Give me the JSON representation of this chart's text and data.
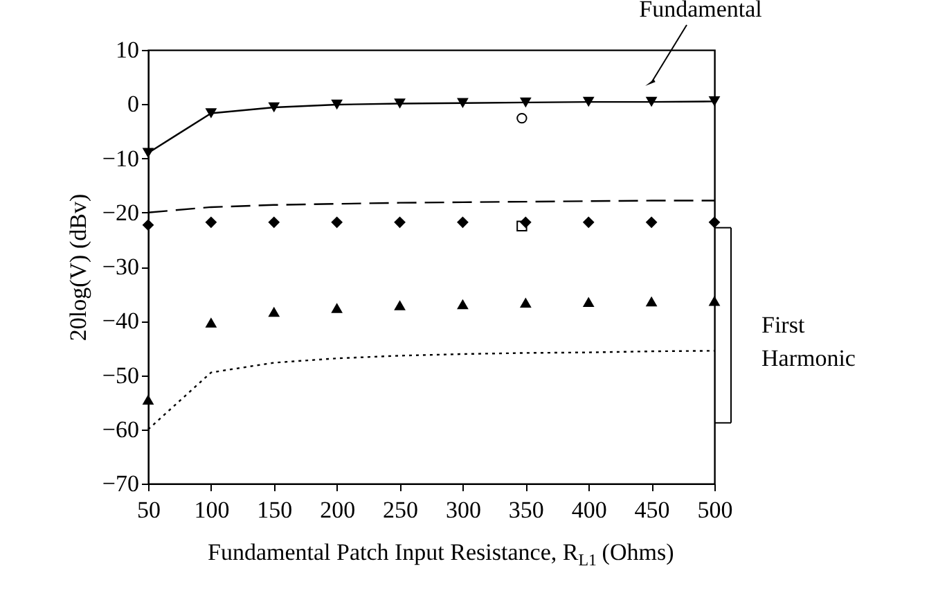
{
  "chart_data": {
    "type": "line",
    "xlabel": "Fundamental Patch Input Resistance, R$_{L1}$ (Ohms)",
    "ylabel": "20log(V) (dBv)",
    "xlim": [
      50,
      500
    ],
    "xticks": [
      50,
      100,
      150,
      200,
      250,
      300,
      350,
      400,
      450,
      500
    ],
    "ylim": [
      -70,
      10
    ],
    "yticks": [
      -70,
      -60,
      -50,
      -40,
      -30,
      -20,
      -10,
      0,
      10
    ],
    "grid": false,
    "annotations": [
      {
        "text": "Fundamental",
        "x": 450,
        "y": 4
      },
      "First Harmonic"
    ],
    "series": [
      {
        "marker": "triangle-down",
        "line_style": "solid",
        "color": "#000000",
        "x": [
          50,
          100,
          150,
          200,
          250,
          300,
          350,
          400,
          450,
          500
        ],
        "values": [
          -9,
          -1.7,
          -0.6,
          -0.1,
          0.1,
          0.2,
          0.3,
          0.4,
          0.4,
          0.5
        ]
      },
      {
        "marker": "none",
        "line_style": "dashed",
        "color": "#000000",
        "x": [
          50,
          100,
          150,
          200,
          250,
          300,
          350,
          400,
          450,
          500
        ],
        "values": [
          -20,
          -19,
          -18.6,
          -18.4,
          -18.2,
          -18.1,
          -18,
          -17.9,
          -17.8,
          -17.8
        ]
      },
      {
        "type": "scatter",
        "marker": "diamond",
        "color": "#000000",
        "x": [
          50,
          100,
          150,
          200,
          250,
          300,
          350,
          400,
          450,
          500
        ],
        "values": [
          -22.3,
          -21.8,
          -21.8,
          -21.8,
          -21.8,
          -21.8,
          -21.8,
          -21.8,
          -21.8,
          -21.8
        ]
      },
      {
        "type": "scatter",
        "marker": "triangle",
        "color": "#000000",
        "x": [
          50,
          100,
          150,
          200,
          250,
          300,
          350,
          400,
          450,
          500
        ],
        "values": [
          -54.5,
          -40.3,
          -38.3,
          -37.6,
          -37.1,
          -36.9,
          -36.6,
          -36.5,
          -36.4,
          -36.3
        ]
      },
      {
        "marker": "none",
        "line_style": "dotted",
        "color": "#000000",
        "x": [
          50,
          100,
          150,
          200,
          250,
          300,
          350,
          400,
          450,
          500
        ],
        "values": [
          -60,
          -49.5,
          -47.7,
          -46.9,
          -46.4,
          -46.1,
          -45.9,
          -45.8,
          -45.6,
          -45.5
        ]
      },
      {
        "type": "scatter",
        "marker": "circle",
        "color": "#000000",
        "x": [
          347
        ],
        "values": [
          -2.6
        ]
      },
      {
        "type": "scatter",
        "marker": "square",
        "color": "#000000",
        "x": [
          347
        ],
        "values": [
          -22.5
        ]
      }
    ]
  }
}
